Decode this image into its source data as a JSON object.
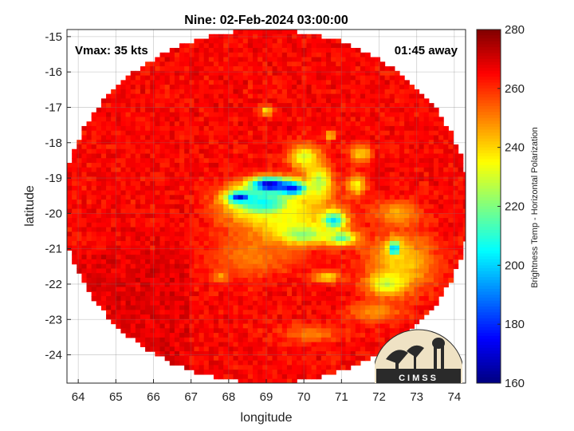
{
  "chart_data": {
    "type": "heatmap",
    "title": "Nine: 02-Feb-2024 03:00:00",
    "xlabel": "longitude",
    "ylabel": "latitude",
    "xlim": [
      63.7,
      74.3
    ],
    "ylim": [
      -24.8,
      -14.8
    ],
    "xticks": [
      64,
      65,
      66,
      67,
      68,
      69,
      70,
      71,
      72,
      73,
      74
    ],
    "yticks": [
      -15,
      -16,
      -17,
      -18,
      -19,
      -20,
      -21,
      -22,
      -23,
      -24
    ],
    "grid": true,
    "colorbar": {
      "label": "Brightness Temp - Horizontal Polarization",
      "min": 160,
      "max": 280,
      "ticks": [
        280,
        260,
        240,
        220,
        200,
        180,
        160
      ],
      "colormap": "jet"
    },
    "swath": {
      "center_lon": 69.0,
      "center_lat": -19.8,
      "radius_lon": 5.4,
      "radius_lat": 5.0
    },
    "background_value": 265,
    "features": [
      {
        "lon": 69.1,
        "lat": -19.2,
        "slon": 0.55,
        "slat": 0.22,
        "value": 165
      },
      {
        "lon": 68.3,
        "lat": -19.55,
        "slon": 0.35,
        "slat": 0.18,
        "value": 172
      },
      {
        "lon": 69.7,
        "lat": -19.3,
        "slon": 0.4,
        "slat": 0.2,
        "value": 175
      },
      {
        "lon": 68.9,
        "lat": -19.7,
        "slon": 0.9,
        "slat": 0.45,
        "value": 205
      },
      {
        "lon": 69.5,
        "lat": -20.1,
        "slon": 1.3,
        "slat": 0.8,
        "value": 235
      },
      {
        "lon": 70.4,
        "lat": -19.1,
        "slon": 0.35,
        "slat": 0.5,
        "value": 225
      },
      {
        "lon": 70.8,
        "lat": -20.2,
        "slon": 0.3,
        "slat": 0.25,
        "value": 200
      },
      {
        "lon": 70.0,
        "lat": -20.6,
        "slon": 0.6,
        "slat": 0.25,
        "value": 220
      },
      {
        "lon": 71.0,
        "lat": -20.7,
        "slon": 0.4,
        "slat": 0.2,
        "value": 215
      },
      {
        "lon": 70.0,
        "lat": -18.4,
        "slon": 0.4,
        "slat": 0.35,
        "value": 230
      },
      {
        "lon": 71.4,
        "lat": -19.2,
        "slon": 0.25,
        "slat": 0.3,
        "value": 235
      },
      {
        "lon": 71.5,
        "lat": -18.3,
        "slon": 0.3,
        "slat": 0.25,
        "value": 240
      },
      {
        "lon": 72.4,
        "lat": -21.0,
        "slon": 0.2,
        "slat": 0.25,
        "value": 195
      },
      {
        "lon": 72.6,
        "lat": -21.4,
        "slon": 0.9,
        "slat": 0.8,
        "value": 240
      },
      {
        "lon": 72.2,
        "lat": -22.0,
        "slon": 0.5,
        "slat": 0.3,
        "value": 228
      },
      {
        "lon": 72.5,
        "lat": -20.0,
        "slon": 0.6,
        "slat": 0.35,
        "value": 245
      },
      {
        "lon": 71.9,
        "lat": -22.8,
        "slon": 0.7,
        "slat": 0.3,
        "value": 248
      },
      {
        "lon": 70.2,
        "lat": -23.4,
        "slon": 0.8,
        "slat": 0.25,
        "value": 250
      },
      {
        "lon": 69.0,
        "lat": -17.1,
        "slon": 0.15,
        "slat": 0.15,
        "value": 235
      },
      {
        "lon": 70.7,
        "lat": -17.8,
        "slon": 0.15,
        "slat": 0.15,
        "value": 240
      },
      {
        "lon": 67.8,
        "lat": -21.8,
        "slon": 0.2,
        "slat": 0.15,
        "value": 245
      },
      {
        "lon": 70.6,
        "lat": -21.8,
        "slon": 0.4,
        "slat": 0.15,
        "value": 238
      },
      {
        "lon": 68.6,
        "lat": -21.2,
        "slon": 1.0,
        "slat": 0.6,
        "value": 250
      }
    ],
    "annotations": {
      "vmax": "Vmax: 35 kts",
      "time_offset": "01:45 away"
    },
    "logo_text": "CIMSS"
  }
}
